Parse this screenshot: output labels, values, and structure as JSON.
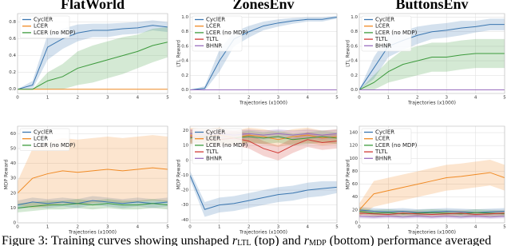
{
  "chart_data": [
    {
      "type": "line",
      "title": "FlatWorld",
      "x": [
        0,
        0.5,
        1,
        1.5,
        2,
        2.5,
        3,
        3.5,
        4,
        4.5,
        5
      ],
      "xlim": [
        0,
        5
      ],
      "xticks": [
        0,
        1,
        2,
        3,
        4,
        5
      ],
      "ylim": [
        -0.05,
        0.9
      ],
      "yticks": [
        {
          "value": 0,
          "label": "0.0"
        },
        0.2,
        0.4,
        0.6,
        0.8
      ],
      "grid": true,
      "series": [
        {
          "name": "CyclER",
          "color": "#3a76b0",
          "values": [
            0,
            0.05,
            0.5,
            0.6,
            0.67,
            0.7,
            0.7,
            0.72,
            0.73,
            0.76,
            0.74
          ],
          "errors": [
            0,
            0.05,
            0.15,
            0.12,
            0.1,
            0.08,
            0.08,
            0.07,
            0.07,
            0.06,
            0.06
          ]
        },
        {
          "name": "LCER",
          "color": "#f08a24",
          "values": [
            0,
            0,
            0,
            0,
            0,
            0,
            0,
            0,
            0,
            0,
            0
          ]
        },
        {
          "name": "LCER (no MDP)",
          "color": "#3c9a3c",
          "values": [
            0,
            0,
            0.1,
            0.15,
            0.25,
            0.3,
            0.35,
            0.4,
            0.45,
            0.52,
            0.56
          ],
          "errors": [
            0,
            0,
            0.1,
            0.15,
            0.2,
            0.22,
            0.22,
            0.22,
            0.2,
            0.2,
            0.18
          ]
        }
      ]
    },
    {
      "type": "line",
      "title": "ZonesEnv",
      "ylabel": "LTL Reward",
      "xlabel": "Trajectories (x1000)",
      "x": [
        0,
        0.5,
        1,
        1.5,
        2,
        2.5,
        3,
        3.5,
        4,
        4.5,
        5
      ],
      "xlim": [
        0,
        5
      ],
      "xticks": [
        0,
        1,
        2,
        3,
        4,
        5
      ],
      "ylim": [
        -0.05,
        1.05
      ],
      "yticks": [
        {
          "value": 0,
          "label": "0.0"
        },
        0.2,
        0.4,
        0.6,
        0.8,
        {
          "value": 1,
          "label": "1.0"
        }
      ],
      "grid": true,
      "series": [
        {
          "name": "CyclER",
          "color": "#3a76b0",
          "values": [
            0,
            0.02,
            0.4,
            0.7,
            0.8,
            0.88,
            0.92,
            0.95,
            0.97,
            0.97,
            1.0
          ],
          "errors": [
            0,
            0.03,
            0.15,
            0.1,
            0.08,
            0.06,
            0.05,
            0.04,
            0.03,
            0.03,
            0.02
          ]
        },
        {
          "name": "LCER",
          "color": "#f08a24",
          "values": [
            0,
            0,
            0,
            0,
            0,
            0,
            0,
            0,
            0,
            0,
            0
          ]
        },
        {
          "name": "LCER (no MDP)",
          "color": "#3c9a3c",
          "values": [
            0,
            0,
            0,
            0,
            0,
            0,
            0,
            0,
            0,
            0,
            0
          ]
        },
        {
          "name": "TLTL",
          "color": "#d03a34",
          "values": [
            0,
            0,
            0,
            0,
            0,
            0,
            0,
            0,
            0,
            0,
            0
          ]
        },
        {
          "name": "BHNR",
          "color": "#9a6fc0",
          "values": [
            0,
            0,
            0,
            0,
            0,
            0,
            0,
            0,
            0,
            0,
            0
          ]
        }
      ]
    },
    {
      "type": "line",
      "title": "ButtonsEnv",
      "ylabel": "LTL Reward",
      "xlabel": "Trajectories (x1000)",
      "x": [
        0,
        0.5,
        1,
        1.5,
        2,
        2.5,
        3,
        3.5,
        4,
        4.5,
        5
      ],
      "xlim": [
        0,
        5
      ],
      "xticks": [
        0,
        1,
        2,
        3,
        4,
        5
      ],
      "ylim": [
        -0.05,
        1.05
      ],
      "yticks": [
        {
          "value": 0,
          "label": "0.0"
        },
        0.2,
        0.4,
        0.6,
        0.8,
        {
          "value": 1,
          "label": "1.0"
        }
      ],
      "grid": true,
      "series": [
        {
          "name": "CyclER",
          "color": "#3a76b0",
          "values": [
            0,
            0.3,
            0.6,
            0.68,
            0.75,
            0.8,
            0.82,
            0.85,
            0.87,
            0.9,
            0.9
          ],
          "errors": [
            0,
            0.15,
            0.15,
            0.13,
            0.12,
            0.1,
            0.1,
            0.1,
            0.08,
            0.08,
            0.08
          ]
        },
        {
          "name": "LCER",
          "color": "#f08a24",
          "values": [
            0,
            0,
            0,
            0,
            0,
            0,
            0,
            0,
            0,
            0,
            0
          ]
        },
        {
          "name": "LCER (no MDP)",
          "color": "#3c9a3c",
          "values": [
            0,
            0.1,
            0.25,
            0.35,
            0.4,
            0.45,
            0.45,
            0.48,
            0.5,
            0.5,
            0.5
          ],
          "errors": [
            0,
            0.1,
            0.15,
            0.2,
            0.2,
            0.2,
            0.2,
            0.2,
            0.2,
            0.2,
            0.2
          ]
        },
        {
          "name": "TLTL",
          "color": "#d03a34",
          "values": [
            0,
            0,
            0,
            0,
            0,
            0,
            0,
            0,
            0,
            0,
            0
          ]
        },
        {
          "name": "BHNR",
          "color": "#9a6fc0",
          "values": [
            0,
            0,
            0,
            0,
            0,
            0,
            0,
            0,
            0,
            0,
            0
          ]
        }
      ]
    },
    {
      "type": "line",
      "ylabel": "MDP Reward",
      "xlabel": "Trajectories (x1000)",
      "x": [
        0,
        0.5,
        1,
        1.5,
        2,
        2.5,
        3,
        3.5,
        4,
        4.5,
        5
      ],
      "xlim": [
        0,
        5
      ],
      "xticks": [
        0,
        1,
        2,
        3,
        4,
        5
      ],
      "ylim": [
        0,
        65
      ],
      "yticks": [
        0,
        10,
        20,
        30,
        40,
        50,
        60
      ],
      "grid": true,
      "series": [
        {
          "name": "CyclER",
          "color": "#3a76b0",
          "values": [
            12,
            14,
            13,
            14,
            13,
            15,
            14,
            13,
            14,
            13,
            14
          ],
          "errors": [
            3,
            3,
            3,
            3,
            3,
            3,
            3,
            3,
            3,
            3,
            3
          ]
        },
        {
          "name": "LCER",
          "color": "#f08a24",
          "values": [
            20,
            30,
            33,
            35,
            34,
            35,
            36,
            35,
            36,
            37,
            36
          ],
          "errors": [
            8,
            20,
            22,
            22,
            22,
            22,
            22,
            22,
            22,
            22,
            22
          ]
        },
        {
          "name": "LCER (no MDP)",
          "color": "#3c9a3c",
          "values": [
            10,
            11,
            12,
            12,
            13,
            12,
            13,
            12,
            12,
            13,
            12
          ],
          "errors": [
            3,
            3,
            3,
            3,
            3,
            3,
            3,
            3,
            3,
            3,
            3
          ]
        }
      ]
    },
    {
      "type": "line",
      "ylabel": "MDP Reward",
      "xlabel": "Trajectories (x1000)",
      "x": [
        0,
        0.5,
        1,
        1.5,
        2,
        2.5,
        3,
        3.5,
        4,
        4.5,
        5
      ],
      "xlim": [
        0,
        5
      ],
      "xticks": [
        0,
        1,
        2,
        3,
        4,
        5
      ],
      "ylim": [
        -42,
        23
      ],
      "yticks": [
        -40,
        -30,
        -20,
        -10,
        0,
        10,
        20
      ],
      "grid": true,
      "series": [
        {
          "name": "CyclER",
          "color": "#3a76b0",
          "values": [
            -10,
            -33,
            -30,
            -29,
            -27,
            -25,
            -23,
            -22,
            -20,
            -19,
            -18
          ],
          "errors": [
            3,
            5,
            5,
            5,
            5,
            5,
            5,
            5,
            5,
            5,
            4
          ]
        },
        {
          "name": "LCER",
          "color": "#f08a24",
          "values": [
            17,
            16,
            17,
            15,
            17,
            16,
            14,
            16,
            17,
            15,
            16
          ],
          "errors": [
            5,
            5,
            5,
            5,
            5,
            5,
            5,
            5,
            5,
            5,
            5
          ]
        },
        {
          "name": "LCER (no MDP)",
          "color": "#3c9a3c",
          "values": [
            15,
            16,
            14,
            15,
            16,
            15,
            16,
            14,
            15,
            16,
            15
          ],
          "errors": [
            4,
            4,
            4,
            4,
            4,
            4,
            4,
            4,
            4,
            4,
            4
          ]
        },
        {
          "name": "TLTL",
          "color": "#d03a34",
          "values": [
            16,
            15,
            14,
            15,
            13,
            8,
            5,
            10,
            14,
            12,
            13
          ],
          "errors": [
            5,
            5,
            5,
            5,
            5,
            5,
            5,
            5,
            5,
            5,
            5
          ]
        },
        {
          "name": "BHNR",
          "color": "#9a6fc0",
          "values": [
            18,
            17,
            18,
            17,
            18,
            17,
            18,
            17,
            18,
            17,
            18
          ],
          "errors": [
            3,
            3,
            3,
            3,
            3,
            3,
            3,
            3,
            3,
            3,
            3
          ]
        }
      ]
    },
    {
      "type": "line",
      "ylabel": "MDP Reward",
      "xlabel": "Trajectories (x1000)",
      "x": [
        0,
        0.5,
        1,
        1.5,
        2,
        2.5,
        3,
        3.5,
        4,
        4.5,
        5
      ],
      "xlim": [
        0,
        5
      ],
      "xticks": [
        0,
        1,
        2,
        3,
        4,
        5
      ],
      "ylim": [
        0,
        150
      ],
      "yticks": [
        0,
        20,
        40,
        60,
        80,
        100,
        120,
        140
      ],
      "grid": true,
      "series": [
        {
          "name": "CyclER",
          "color": "#3a76b0",
          "values": [
            20,
            18,
            17,
            18,
            16,
            17,
            18,
            17,
            16,
            17,
            18
          ],
          "errors": [
            5,
            5,
            5,
            5,
            5,
            5,
            5,
            5,
            5,
            5,
            5
          ]
        },
        {
          "name": "LCER",
          "color": "#f08a24",
          "values": [
            20,
            45,
            50,
            55,
            60,
            65,
            70,
            72,
            75,
            78,
            70
          ],
          "errors": [
            10,
            20,
            20,
            20,
            20,
            20,
            20,
            20,
            20,
            20,
            20
          ]
        },
        {
          "name": "LCER (no MDP)",
          "color": "#3c9a3c",
          "values": [
            18,
            15,
            16,
            14,
            15,
            16,
            15,
            14,
            16,
            15,
            14
          ],
          "errors": [
            5,
            5,
            5,
            5,
            5,
            5,
            5,
            5,
            5,
            5,
            5
          ]
        },
        {
          "name": "TLTL",
          "color": "#d03a34",
          "values": [
            15,
            14,
            13,
            15,
            14,
            13,
            14,
            15,
            13,
            14,
            15
          ],
          "errors": [
            4,
            4,
            4,
            4,
            4,
            4,
            4,
            4,
            4,
            4,
            4
          ]
        },
        {
          "name": "BHNR",
          "color": "#9a6fc0",
          "values": [
            10,
            9,
            10,
            9,
            10,
            9,
            10,
            9,
            10,
            9,
            10
          ],
          "errors": [
            3,
            3,
            3,
            3,
            3,
            3,
            3,
            3,
            3,
            3,
            3
          ]
        }
      ]
    }
  ],
  "caption": [
    "Figure 3: Training curves showing unshaped ",
    "r",
    "LTL",
    " (top) and ",
    "r",
    "MDP",
    " (bottom) performance averaged"
  ]
}
